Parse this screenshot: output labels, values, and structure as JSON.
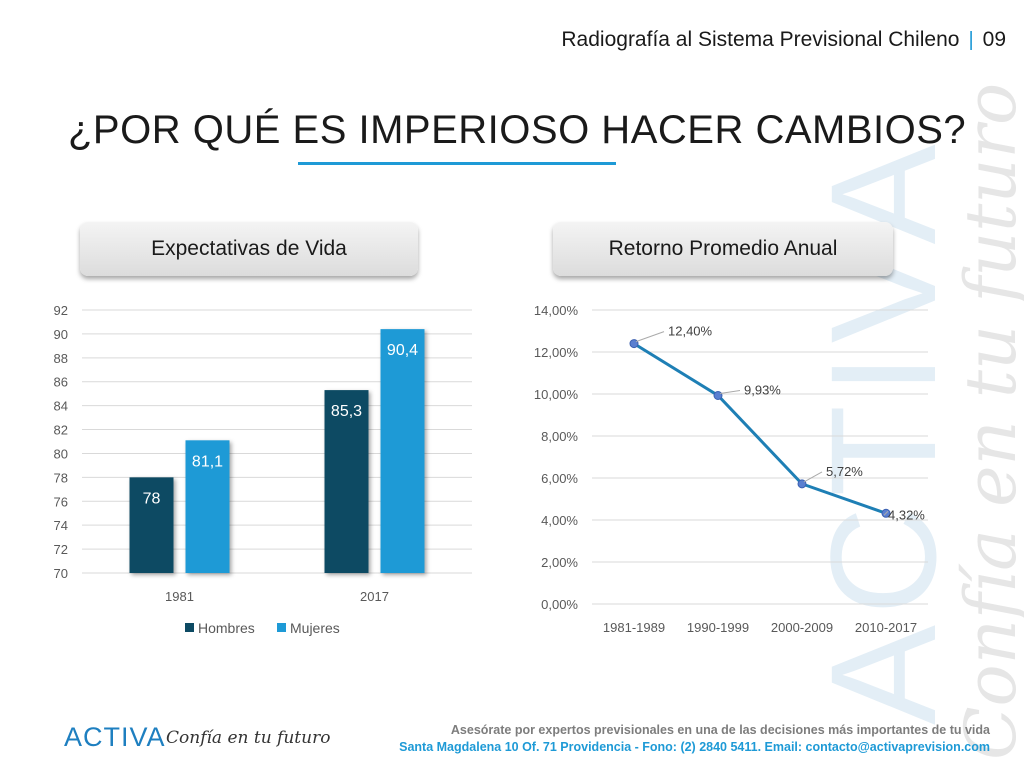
{
  "header": {
    "subtitle": "Radiografía al Sistema Previsional Chileno",
    "page_number": "09",
    "separator": "|"
  },
  "title": "¿POR QUÉ ES IMPERIOSO HACER CAMBIOS?",
  "watermark": {
    "brand": "ACTIVA",
    "tagline": "Confía en tu futuro"
  },
  "charts": {
    "left_pill": "Expectativas de Vida",
    "right_pill": "Retorno Promedio Anual"
  },
  "colors": {
    "hombres": "#0d4a63",
    "mujeres": "#1e9ad6",
    "line": "#1e7fb5",
    "accent": "#1e9ad6"
  },
  "chart_data": [
    {
      "type": "bar",
      "title": "Expectativas de Vida",
      "categories": [
        "1981",
        "2017"
      ],
      "series": [
        {
          "name": "Hombres",
          "values": [
            78,
            85.3
          ],
          "labels": [
            "78",
            "85,3"
          ]
        },
        {
          "name": "Mujeres",
          "values": [
            81.1,
            90.4
          ],
          "labels": [
            "81,1",
            "90,4"
          ]
        }
      ],
      "ylim": [
        70,
        92
      ],
      "yticks": [
        "70",
        "72",
        "74",
        "76",
        "78",
        "80",
        "82",
        "84",
        "86",
        "88",
        "90",
        "92"
      ],
      "grid": true,
      "legend": "bottom"
    },
    {
      "type": "line",
      "title": "Retorno Promedio Anual",
      "categories": [
        "1981-1989",
        "1990-1999",
        "2000-2009",
        "2010-2017"
      ],
      "values": [
        12.4,
        9.93,
        5.72,
        4.32
      ],
      "labels": [
        "12,40%",
        "9,93%",
        "5,72%",
        "4,32%"
      ],
      "ylim": [
        0,
        14
      ],
      "yticks": [
        "0,00%",
        "2,00%",
        "4,00%",
        "6,00%",
        "8,00%",
        "10,00%",
        "12,00%",
        "14,00%"
      ],
      "grid": true
    }
  ],
  "footer": {
    "logo": "ACTIVA",
    "tagline": "Confía en tu futuro",
    "line1": "Asesórate por expertos previsionales en una de las decisiones más importantes de tu vida",
    "line2": "Santa Magdalena 10 Of. 71 Providencia - Fono: (2) 2840 5411. Email: contacto@activaprevision.com"
  }
}
